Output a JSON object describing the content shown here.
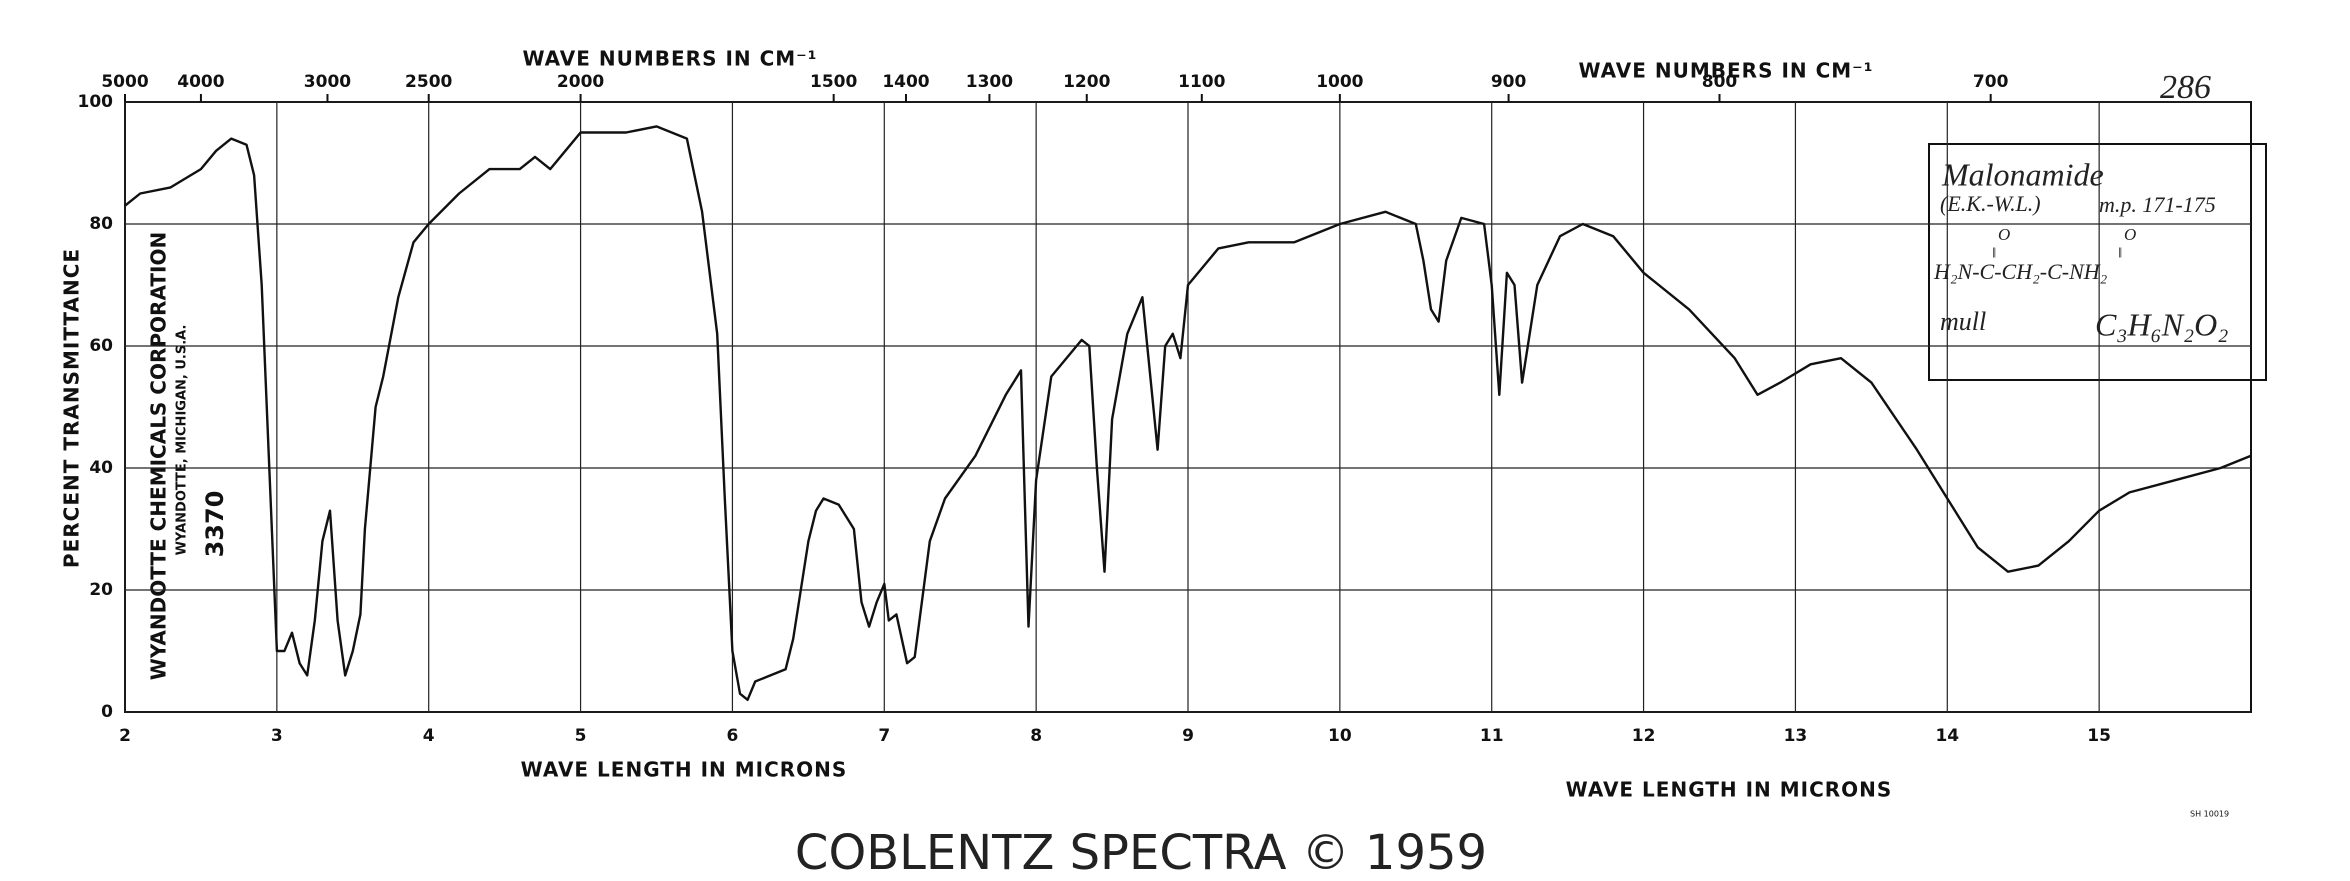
{
  "chart_data": {
    "type": "line",
    "y_label": "PERCENT TRANSMITTANCE",
    "top_labels": [
      "WAVE NUMBERS IN CM⁻¹",
      "WAVE NUMBERS IN CM⁻¹"
    ],
    "bottom_labels": [
      "WAVE LENGTH IN MICRONS",
      "WAVE LENGTH IN MICRONS"
    ],
    "xlim": [
      2,
      16
    ],
    "xticks": [
      2,
      3,
      4,
      5,
      6,
      7,
      8,
      9,
      10,
      11,
      12,
      13,
      14,
      15
    ],
    "x2ticks": [
      5000,
      4000,
      3000,
      2500,
      2000,
      1500,
      1400,
      1300,
      1200,
      1100,
      1000,
      900,
      800,
      700
    ],
    "ylim": [
      0,
      100
    ],
    "yticks": [
      0,
      20,
      40,
      60,
      80,
      100
    ],
    "grid": true,
    "x": [
      2.0,
      2.1,
      2.3,
      2.5,
      2.6,
      2.7,
      2.8,
      2.85,
      2.9,
      2.95,
      3.0,
      3.05,
      3.1,
      3.15,
      3.2,
      3.25,
      3.3,
      3.35,
      3.4,
      3.45,
      3.5,
      3.55,
      3.58,
      3.65,
      3.7,
      3.8,
      3.9,
      4.0,
      4.2,
      4.4,
      4.6,
      4.7,
      4.8,
      4.9,
      5.0,
      5.3,
      5.5,
      5.7,
      5.75,
      5.8,
      5.9,
      5.95,
      6.0,
      6.05,
      6.1,
      6.15,
      6.25,
      6.35,
      6.4,
      6.45,
      6.5,
      6.55,
      6.6,
      6.7,
      6.8,
      6.85,
      6.9,
      6.95,
      7.0,
      7.03,
      7.08,
      7.15,
      7.2,
      7.3,
      7.4,
      7.6,
      7.8,
      7.9,
      7.95,
      8.0,
      8.1,
      8.3,
      8.35,
      8.4,
      8.45,
      8.5,
      8.6,
      8.7,
      8.8,
      8.85,
      8.9,
      8.95,
      9.0,
      9.2,
      9.4,
      9.7,
      10.0,
      10.3,
      10.5,
      10.55,
      10.6,
      10.65,
      10.7,
      10.8,
      10.95,
      11.0,
      11.05,
      11.1,
      11.15,
      11.2,
      11.3,
      11.45,
      11.6,
      11.8,
      12.0,
      12.3,
      12.6,
      12.75,
      12.9,
      13.1,
      13.3,
      13.5,
      13.8,
      14.0,
      14.2,
      14.4,
      14.6,
      14.8,
      15.0,
      15.2,
      15.5,
      15.8,
      16.0
    ],
    "series": [
      {
        "color": "#111111",
        "values": [
          83,
          85,
          86,
          89,
          92,
          94,
          93,
          88,
          70,
          40,
          10,
          10,
          13,
          8,
          6,
          15,
          28,
          33,
          15,
          6,
          10,
          16,
          30,
          50,
          55,
          68,
          77,
          80,
          85,
          89,
          89,
          91,
          89,
          92,
          95,
          95,
          96,
          94,
          88,
          82,
          62,
          35,
          10,
          3,
          2,
          5,
          6,
          7,
          12,
          20,
          28,
          33,
          35,
          34,
          30,
          18,
          14,
          18,
          21,
          15,
          16,
          8,
          9,
          28,
          35,
          42,
          52,
          56,
          14,
          38,
          55,
          61,
          60,
          40,
          23,
          48,
          62,
          68,
          43,
          60,
          62,
          58,
          70,
          76,
          77,
          77,
          80,
          82,
          80,
          74,
          66,
          64,
          74,
          81,
          80,
          70,
          52,
          72,
          70,
          54,
          70,
          78,
          80,
          78,
          72,
          66,
          58,
          52,
          54,
          57,
          58,
          54,
          43,
          35,
          27,
          23,
          24,
          28,
          33,
          36,
          38,
          40,
          42
        ]
      }
    ],
    "company": [
      "WYANDOTTE CHEMICALS CORPORATION",
      "WYANDOTTE, MICHIGAN, U.S.A.",
      "3370"
    ],
    "annotations": {
      "number": "286",
      "compound": "Malonamide",
      "source": "(E.K.-W.L.)",
      "mp": "m.p. 171-175",
      "formula": {
        "main": "H₂N-C-CH₂-C-NH₂",
        "above": [
          "O",
          "O"
        ]
      },
      "phase": "mull",
      "molecular_formula": "C₃H₆N₂O₂"
    },
    "code": "SH 10019",
    "footer": "COBLENTZ SPECTRA © 1959"
  }
}
